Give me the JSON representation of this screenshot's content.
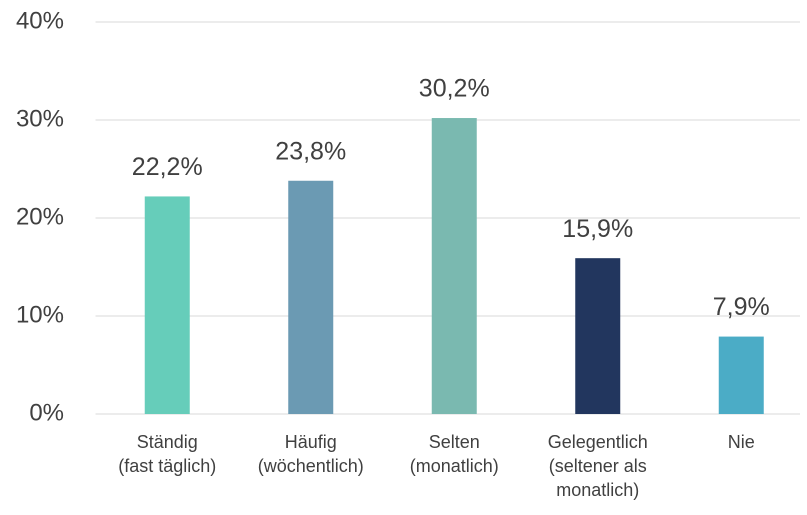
{
  "chart_data": {
    "type": "bar",
    "categories": [
      [
        "Ständig",
        "(fast täglich)"
      ],
      [
        "Häufig",
        "(wöchentlich)"
      ],
      [
        "Selten",
        "(monatlich)"
      ],
      [
        "Gelegentlich",
        "(seltener als",
        "monatlich)"
      ],
      [
        "Nie"
      ]
    ],
    "values": [
      22.2,
      23.8,
      30.2,
      15.9,
      7.9
    ],
    "value_labels": [
      "22,2%",
      "23,8%",
      "30,2%",
      "15,9%",
      "7,9%"
    ],
    "colors": [
      "#66cdba",
      "#6b9ab3",
      "#7ab9b0",
      "#22365e",
      "#4bacc6"
    ],
    "ylim": [
      0,
      40
    ],
    "yticks": [
      {
        "value": 0,
        "label": "0%"
      },
      {
        "value": 10,
        "label": "10%"
      },
      {
        "value": 20,
        "label": "20%"
      },
      {
        "value": 30,
        "label": "30%"
      },
      {
        "value": 40,
        "label": "40%"
      }
    ],
    "grid": true
  }
}
